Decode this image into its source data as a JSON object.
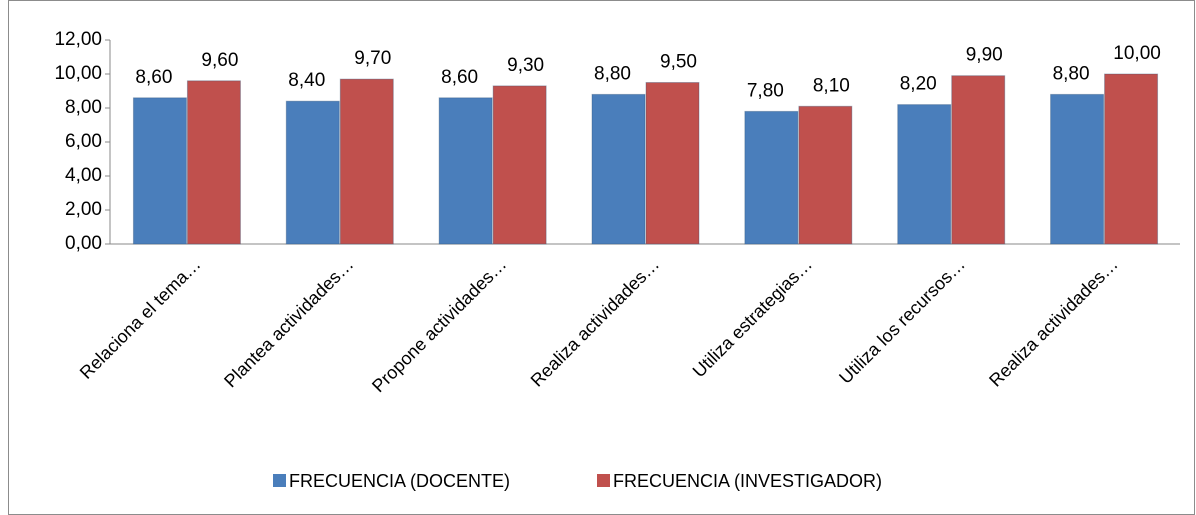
{
  "chart_data": {
    "type": "bar",
    "categories": [
      "Relaciona el tema…",
      "Plantea actividades…",
      "Propone actividades…",
      "Realiza actividades…",
      "Utiliza estrategias…",
      "Utiliza los recursos…",
      "Realiza actividades…"
    ],
    "series": [
      {
        "name": "FRECUENCIA (DOCENTE)",
        "color": "#4a7ebb",
        "values": [
          8.6,
          8.4,
          8.6,
          8.8,
          7.8,
          8.2,
          8.8
        ],
        "value_labels": [
          "8,60",
          "8,40",
          "8,60",
          "8,80",
          "7,80",
          "8,20",
          "8,80"
        ]
      },
      {
        "name": "FRECUENCIA (INVESTIGADOR)",
        "color": "#c0504d",
        "values": [
          9.6,
          9.7,
          9.3,
          9.5,
          8.1,
          9.9,
          10.0
        ],
        "value_labels": [
          "9,60",
          "9,70",
          "9,30",
          "9,50",
          "8,10",
          "9,90",
          "10,00"
        ]
      }
    ],
    "ylim": [
      0,
      12
    ],
    "yticks": [
      {
        "value": 0,
        "label": "0,00"
      },
      {
        "value": 2,
        "label": "2,00"
      },
      {
        "value": 4,
        "label": "4,00"
      },
      {
        "value": 6,
        "label": "6,00"
      },
      {
        "value": 8,
        "label": "8,00"
      },
      {
        "value": 10,
        "label": "10,00"
      },
      {
        "value": 12,
        "label": "12,00"
      }
    ],
    "grid": false,
    "legend": "bottom"
  }
}
